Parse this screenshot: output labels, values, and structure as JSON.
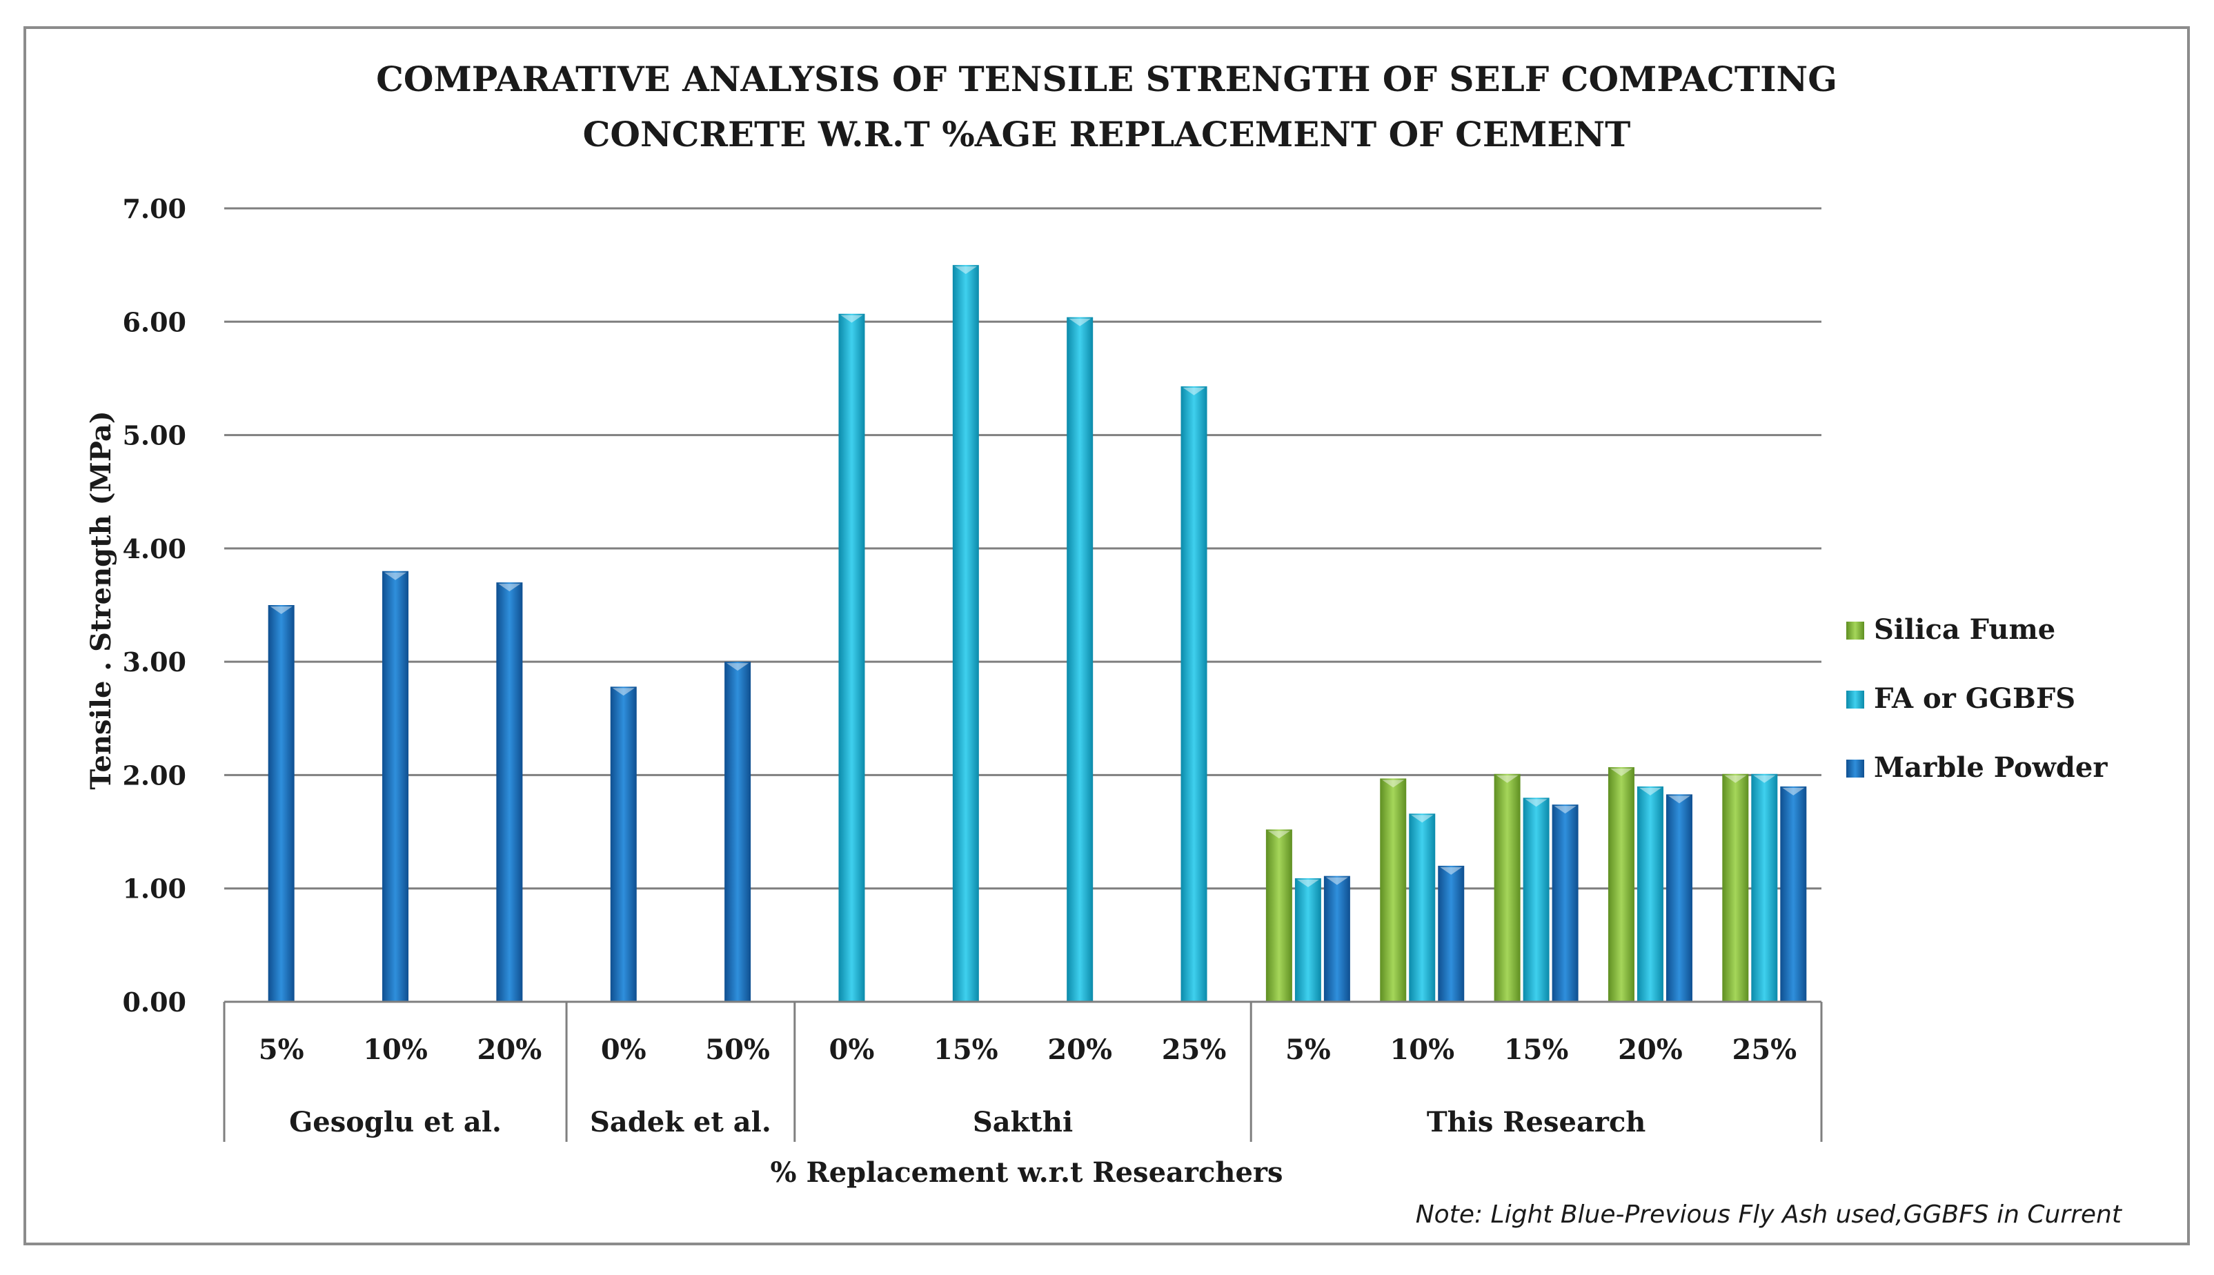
{
  "chart_data": {
    "type": "bar",
    "title": "COMPARATIVE ANALYSIS OF TENSILE STRENGTH OF SELF COMPACTING CONCRETE W.R.T %AGE REPLACEMENT OF CEMENT",
    "title_lines": [
      "COMPARATIVE ANALYSIS OF TENSILE STRENGTH OF SELF COMPACTING",
      "CONCRETE W.R.T %AGE REPLACEMENT OF CEMENT"
    ],
    "ylabel": "Tensile . Strength (MPa)",
    "xlabel": "% Replacement w.r.t Researchers",
    "ylim": [
      0,
      7
    ],
    "yticks": [
      "0.00",
      "1.00",
      "2.00",
      "3.00",
      "4.00",
      "5.00",
      "6.00",
      "7.00"
    ],
    "grid": true,
    "legend_position": "right",
    "note": "Note: Light Blue-Previous Fly Ash used,GGBFS in Current",
    "series_names": [
      "Silica Fume",
      "FA or GGBFS",
      "Marble Powder"
    ],
    "series_colors": [
      "#8dc63f",
      "#1ab2d8",
      "#1e78c8"
    ],
    "groups": [
      {
        "name": "Gesoglu et al.",
        "categories": [
          {
            "label": "5%",
            "bars": [
              {
                "series": "Marble Powder",
                "value": 3.5
              }
            ]
          },
          {
            "label": "10%",
            "bars": [
              {
                "series": "Marble Powder",
                "value": 3.8
              }
            ]
          },
          {
            "label": "20%",
            "bars": [
              {
                "series": "Marble Powder",
                "value": 3.7
              }
            ]
          }
        ]
      },
      {
        "name": "Sadek et al.",
        "categories": [
          {
            "label": "0%",
            "bars": [
              {
                "series": "Marble Powder",
                "value": 2.78
              }
            ]
          },
          {
            "label": "50%",
            "bars": [
              {
                "series": "Marble Powder",
                "value": 3.0
              }
            ]
          }
        ]
      },
      {
        "name": "Sakthi",
        "categories": [
          {
            "label": "0%",
            "bars": [
              {
                "series": "FA or GGBFS",
                "value": 6.07
              }
            ]
          },
          {
            "label": "15%",
            "bars": [
              {
                "series": "FA or GGBFS",
                "value": 6.5
              }
            ]
          },
          {
            "label": "20%",
            "bars": [
              {
                "series": "FA or GGBFS",
                "value": 6.04
              }
            ]
          },
          {
            "label": "25%",
            "bars": [
              {
                "series": "FA or GGBFS",
                "value": 5.43
              }
            ]
          }
        ]
      },
      {
        "name": "This Research",
        "categories": [
          {
            "label": "5%",
            "bars": [
              {
                "series": "Silica Fume",
                "value": 1.52
              },
              {
                "series": "FA or GGBFS",
                "value": 1.09
              },
              {
                "series": "Marble Powder",
                "value": 1.11
              }
            ]
          },
          {
            "label": "10%",
            "bars": [
              {
                "series": "Silica Fume",
                "value": 1.97
              },
              {
                "series": "FA or GGBFS",
                "value": 1.66
              },
              {
                "series": "Marble Powder",
                "value": 1.2
              }
            ]
          },
          {
            "label": "15%",
            "bars": [
              {
                "series": "Silica Fume",
                "value": 2.01
              },
              {
                "series": "FA or GGBFS",
                "value": 1.8
              },
              {
                "series": "Marble Powder",
                "value": 1.74
              }
            ]
          },
          {
            "label": "20%",
            "bars": [
              {
                "series": "Silica Fume",
                "value": 2.07
              },
              {
                "series": "FA or GGBFS",
                "value": 1.9
              },
              {
                "series": "Marble Powder",
                "value": 1.83
              }
            ]
          },
          {
            "label": "25%",
            "bars": [
              {
                "series": "Silica Fume",
                "value": 2.01
              },
              {
                "series": "FA or GGBFS",
                "value": 2.01
              },
              {
                "series": "Marble Powder",
                "value": 1.9
              }
            ]
          }
        ]
      }
    ]
  }
}
